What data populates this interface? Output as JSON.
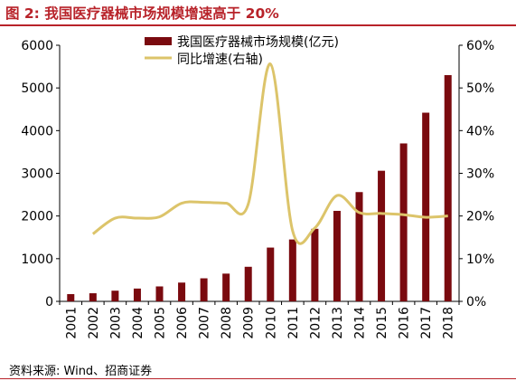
{
  "figure": {
    "title": "图 2:  我国医疗器械市场规模增速高于 20%",
    "source": "资料来源:  Wind、招商证券",
    "accent_color": "#b8232a"
  },
  "chart_data": {
    "type": "bar",
    "categories": [
      "2001",
      "2002",
      "2003",
      "2004",
      "2005",
      "2006",
      "2007",
      "2008",
      "2009",
      "2010",
      "2011",
      "2012",
      "2013",
      "2014",
      "2015",
      "2016",
      "2017",
      "2018"
    ],
    "series": [
      {
        "name": "我国医疗器械市场规模(亿元)",
        "type": "bar",
        "axis": "left",
        "color": "#7a0a0f",
        "values": [
          170,
          190,
          250,
          300,
          350,
          440,
          540,
          650,
          810,
          1260,
          1450,
          1700,
          2120,
          2560,
          3060,
          3700,
          4420,
          5300
        ]
      },
      {
        "name": "同比增速(右轴)",
        "type": "line",
        "axis": "right",
        "color": "#dcc46a",
        "values": [
          null,
          15.8,
          19.5,
          19.5,
          19.8,
          23.0,
          23.2,
          23.0,
          22.8,
          55.6,
          16.5,
          17.2,
          24.8,
          20.8,
          20.6,
          20.3,
          19.7,
          20.0
        ]
      }
    ],
    "y_left": {
      "min": 0,
      "max": 6000,
      "ticks": [
        "0",
        "1000",
        "2000",
        "3000",
        "4000",
        "5000",
        "6000"
      ]
    },
    "y_right": {
      "min": 0,
      "max": 60,
      "ticks": [
        "0%",
        "10%",
        "20%",
        "30%",
        "40%",
        "50%",
        "60%"
      ]
    },
    "grid": false,
    "legend_position": "top-center"
  }
}
